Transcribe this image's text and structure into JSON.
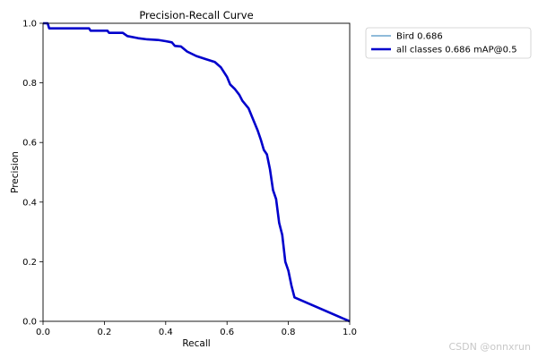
{
  "chart_data": {
    "type": "line",
    "title": "Precision-Recall Curve",
    "xlabel": "Recall",
    "ylabel": "Precision",
    "xlim": [
      0,
      1
    ],
    "ylim": [
      0,
      1
    ],
    "x_ticks": [
      "0.0",
      "0.2",
      "0.4",
      "0.6",
      "0.8",
      "1.0"
    ],
    "y_ticks": [
      "0.0",
      "0.2",
      "0.4",
      "0.6",
      "0.8",
      "1.0"
    ],
    "grid": false,
    "legend_position": "outside-top-right",
    "series": [
      {
        "name": "Bird 0.686",
        "color": "#1f77b4",
        "points": [
          [
            0.0,
            1.0
          ],
          [
            0.015,
            1.0
          ],
          [
            0.02,
            0.983
          ],
          [
            0.15,
            0.983
          ],
          [
            0.155,
            0.975
          ],
          [
            0.21,
            0.975
          ],
          [
            0.215,
            0.968
          ],
          [
            0.26,
            0.968
          ],
          [
            0.275,
            0.957
          ],
          [
            0.31,
            0.95
          ],
          [
            0.34,
            0.946
          ],
          [
            0.375,
            0.944
          ],
          [
            0.4,
            0.94
          ],
          [
            0.42,
            0.936
          ],
          [
            0.43,
            0.924
          ],
          [
            0.45,
            0.922
          ],
          [
            0.47,
            0.905
          ],
          [
            0.5,
            0.89
          ],
          [
            0.53,
            0.88
          ],
          [
            0.56,
            0.87
          ],
          [
            0.58,
            0.852
          ],
          [
            0.6,
            0.82
          ],
          [
            0.61,
            0.795
          ],
          [
            0.625,
            0.78
          ],
          [
            0.64,
            0.76
          ],
          [
            0.65,
            0.74
          ],
          [
            0.67,
            0.715
          ],
          [
            0.68,
            0.69
          ],
          [
            0.7,
            0.64
          ],
          [
            0.71,
            0.61
          ],
          [
            0.72,
            0.575
          ],
          [
            0.73,
            0.56
          ],
          [
            0.74,
            0.51
          ],
          [
            0.75,
            0.44
          ],
          [
            0.76,
            0.41
          ],
          [
            0.77,
            0.33
          ],
          [
            0.78,
            0.29
          ],
          [
            0.79,
            0.2
          ],
          [
            0.8,
            0.17
          ],
          [
            0.81,
            0.12
          ],
          [
            0.82,
            0.08
          ],
          [
            1.0,
            0.0
          ]
        ]
      },
      {
        "name": "all classes 0.686 mAP@0.5",
        "color": "#0000cc",
        "points": [
          [
            0.0,
            1.0
          ],
          [
            0.015,
            1.0
          ],
          [
            0.02,
            0.983
          ],
          [
            0.15,
            0.983
          ],
          [
            0.155,
            0.975
          ],
          [
            0.21,
            0.975
          ],
          [
            0.215,
            0.968
          ],
          [
            0.26,
            0.968
          ],
          [
            0.275,
            0.957
          ],
          [
            0.31,
            0.95
          ],
          [
            0.34,
            0.946
          ],
          [
            0.375,
            0.944
          ],
          [
            0.4,
            0.94
          ],
          [
            0.42,
            0.936
          ],
          [
            0.43,
            0.924
          ],
          [
            0.45,
            0.922
          ],
          [
            0.47,
            0.905
          ],
          [
            0.5,
            0.89
          ],
          [
            0.53,
            0.88
          ],
          [
            0.56,
            0.87
          ],
          [
            0.58,
            0.852
          ],
          [
            0.6,
            0.82
          ],
          [
            0.61,
            0.795
          ],
          [
            0.625,
            0.78
          ],
          [
            0.64,
            0.76
          ],
          [
            0.65,
            0.74
          ],
          [
            0.67,
            0.715
          ],
          [
            0.68,
            0.69
          ],
          [
            0.7,
            0.64
          ],
          [
            0.71,
            0.61
          ],
          [
            0.72,
            0.575
          ],
          [
            0.73,
            0.56
          ],
          [
            0.74,
            0.51
          ],
          [
            0.75,
            0.44
          ],
          [
            0.76,
            0.41
          ],
          [
            0.77,
            0.33
          ],
          [
            0.78,
            0.29
          ],
          [
            0.79,
            0.2
          ],
          [
            0.8,
            0.17
          ],
          [
            0.81,
            0.12
          ],
          [
            0.82,
            0.08
          ],
          [
            1.0,
            0.0
          ]
        ]
      }
    ]
  },
  "watermark": "CSDN @onnxrun"
}
